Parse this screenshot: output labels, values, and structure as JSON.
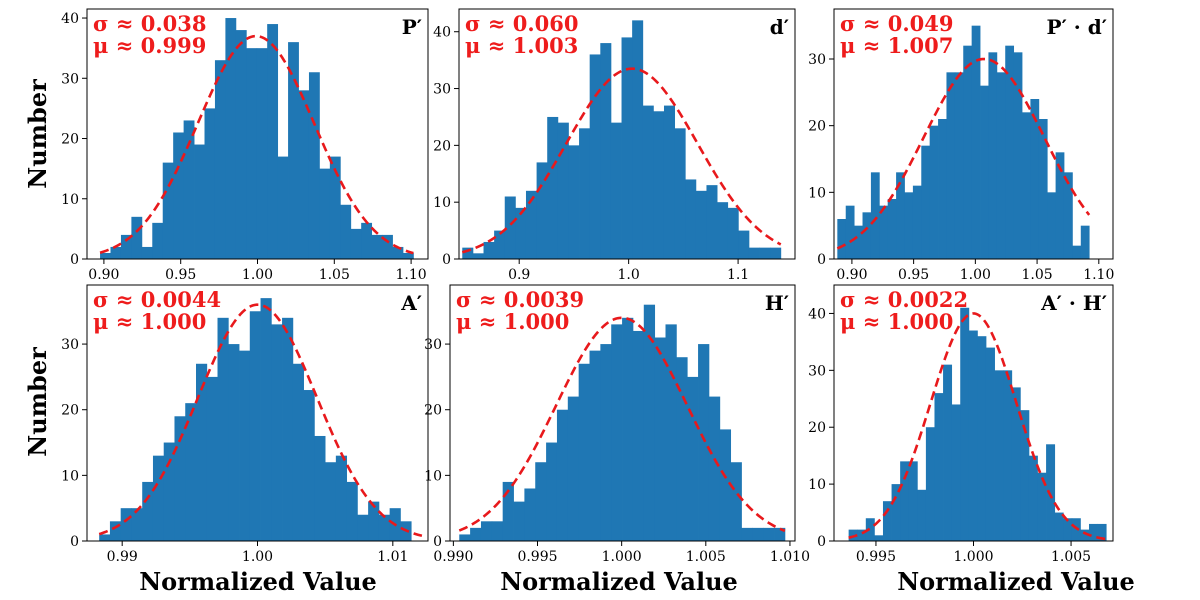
{
  "figure": {
    "ylabel": "Number",
    "xlabel": "Normalized Value",
    "colors": {
      "bars": "#1f77b4",
      "fit": "#e8191c",
      "stats": "#ee1c1c"
    }
  },
  "chart_data": [
    {
      "type": "bar",
      "label": "P′",
      "sigma_text": "σ ≈ 0.038",
      "mu_text": "μ ≈ 0.999",
      "sigma": 0.038,
      "mu": 0.999,
      "fit_peak": 37,
      "xlim": [
        0.889,
        1.111
      ],
      "ylim": [
        0,
        41.5
      ],
      "bin_start": 0.8975,
      "bin_width": 0.0068,
      "values": [
        1,
        2,
        4,
        7,
        2,
        6,
        16,
        21,
        23,
        19,
        25,
        33,
        40,
        38,
        35,
        35,
        39,
        17,
        36,
        28,
        31,
        15,
        17,
        9,
        5,
        6,
        4,
        4,
        2,
        1
      ],
      "xticks": [
        0.9,
        0.95,
        1.0,
        1.05,
        1.1
      ],
      "xtick_labels": [
        "0.90",
        "0.95",
        "1.00",
        "1.05",
        "1.10"
      ],
      "yticks": [
        0,
        10,
        20,
        30,
        40
      ],
      "ytick_labels": [
        "0",
        "10",
        "20",
        "30",
        "40"
      ]
    },
    {
      "type": "bar",
      "label": "d′",
      "sigma_text": "σ ≈ 0.060",
      "mu_text": "μ ≈ 1.003",
      "sigma": 0.06,
      "mu": 1.003,
      "fit_peak": 33.5,
      "xlim": [
        0.845,
        1.152
      ],
      "ylim": [
        0,
        44
      ],
      "bin_start": 0.848,
      "bin_width": 0.0097,
      "values": [
        2,
        1,
        3,
        5,
        11,
        9,
        12,
        17,
        25,
        24,
        20,
        23,
        36,
        38,
        24,
        39,
        42,
        27,
        26,
        27,
        23,
        14,
        12,
        13,
        10,
        9,
        5,
        2,
        2,
        2
      ],
      "xticks": [
        0.9,
        1.0,
        1.1
      ],
      "xtick_labels": [
        "0.9",
        "1.0",
        "1.1"
      ],
      "yticks": [
        0,
        10,
        20,
        30,
        40
      ],
      "ytick_labels": [
        "0",
        "10",
        "20",
        "30",
        "40"
      ]
    },
    {
      "type": "bar",
      "label": "P′ · d′",
      "sigma_text": "σ ≈ 0.049",
      "mu_text": "μ ≈ 1.007",
      "sigma": 0.049,
      "mu": 1.007,
      "fit_peak": 30,
      "xlim": [
        0.8855,
        1.1115
      ],
      "ylim": [
        0,
        37.5
      ],
      "bin_start": 0.8882,
      "bin_width": 0.0068,
      "values": [
        6,
        8,
        5,
        7,
        13,
        8,
        9,
        13,
        10,
        11,
        17,
        20,
        21,
        28,
        28,
        32,
        35,
        26,
        31,
        28,
        32,
        31,
        22,
        24,
        21,
        10,
        16,
        13,
        2,
        5
      ],
      "xticks": [
        0.9,
        0.95,
        1.0,
        1.05,
        1.1
      ],
      "xtick_labels": [
        "0.90",
        "0.95",
        "1.00",
        "1.05",
        "1.10"
      ],
      "yticks": [
        0,
        10,
        20,
        30
      ],
      "ytick_labels": [
        "0",
        "10",
        "20",
        "30"
      ]
    },
    {
      "type": "bar",
      "label": "A′",
      "sigma_text": "σ ≈ 0.0044",
      "mu_text": "μ ≈ 1.000",
      "sigma": 0.0044,
      "mu": 1.0,
      "fit_peak": 36,
      "xlim": [
        0.9874,
        1.0126
      ],
      "ylim": [
        0,
        39
      ],
      "bin_start": 0.9883,
      "bin_width": 0.000795,
      "values": [
        1,
        3,
        5,
        5,
        9,
        13,
        15,
        19,
        21,
        27,
        25,
        34,
        30,
        29,
        35,
        37,
        33,
        34,
        27,
        23,
        16,
        12,
        13,
        9,
        4,
        6,
        4,
        5,
        3,
        0
      ],
      "xticks": [
        0.99,
        1.0,
        1.01
      ],
      "xtick_labels": [
        "0.99",
        "1.00",
        "1.01"
      ],
      "yticks": [
        0,
        10,
        20,
        30
      ],
      "ytick_labels": [
        "0",
        "10",
        "20",
        "30"
      ]
    },
    {
      "type": "bar",
      "label": "H′",
      "sigma_text": "σ ≈ 0.0039",
      "mu_text": "μ ≈ 1.000",
      "sigma": 0.0039,
      "mu": 1.0,
      "fit_peak": 34,
      "xlim": [
        0.9898,
        1.0103
      ],
      "ylim": [
        0,
        39
      ],
      "bin_start": 0.99035,
      "bin_width": 0.000645,
      "values": [
        1,
        2,
        3,
        3,
        9,
        6,
        8,
        12,
        15,
        20,
        22,
        27,
        29,
        30,
        33,
        34,
        32,
        36,
        31,
        33,
        28,
        25,
        30,
        22,
        17,
        12,
        2,
        2,
        2,
        2
      ],
      "xticks": [
        0.99,
        0.995,
        1.0,
        1.005,
        1.01
      ],
      "xtick_labels": [
        "0.990",
        "0.995",
        "1.000",
        "1.005",
        "1.010"
      ],
      "yticks": [
        0,
        10,
        20,
        30
      ],
      "ytick_labels": [
        "0",
        "10",
        "20",
        "30"
      ]
    },
    {
      "type": "bar",
      "label": "A′ · H′",
      "sigma_text": "σ ≈ 0.0022",
      "mu_text": "μ ≈ 1.000",
      "sigma": 0.0022,
      "mu": 1.0,
      "fit_peak": 40,
      "xlim": [
        0.99285,
        1.00715
      ],
      "ylim": [
        0,
        45
      ],
      "bin_start": 0.9936,
      "bin_width": 0.00044,
      "values": [
        2,
        2,
        4,
        1,
        7,
        10,
        14,
        14,
        9,
        20,
        26,
        31,
        24,
        41,
        37,
        36,
        34,
        30,
        30,
        27,
        23,
        15,
        12,
        17,
        5,
        4,
        4,
        2,
        3,
        3
      ],
      "xticks": [
        0.995,
        1.0,
        1.005
      ],
      "xtick_labels": [
        "0.995",
        "1.000",
        "1.005"
      ],
      "yticks": [
        0,
        10,
        20,
        30,
        40
      ],
      "ytick_labels": [
        "0",
        "10",
        "20",
        "30",
        "40"
      ]
    }
  ]
}
